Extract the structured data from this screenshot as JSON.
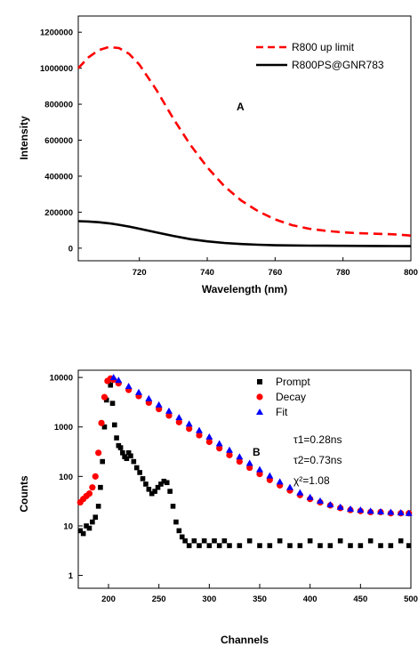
{
  "chart_data": [
    {
      "type": "line",
      "panel_label": "A",
      "xlabel": "Wavelength (nm)",
      "ylabel": "Intensity",
      "xlim": [
        702,
        800
      ],
      "ylim": [
        -70000,
        1290000
      ],
      "xticks": [
        720,
        740,
        760,
        780,
        800
      ],
      "yticks": [
        0,
        200000,
        400000,
        600000,
        800000,
        1000000,
        1200000
      ],
      "grid": false,
      "legend_position": "top-right",
      "x": [
        702,
        705,
        708,
        711,
        714,
        717,
        720,
        725,
        730,
        735,
        740,
        745,
        750,
        755,
        760,
        765,
        770,
        775,
        780,
        785,
        790,
        795,
        800
      ],
      "series": [
        {
          "name": "R800 up limit",
          "style": "dashed",
          "color": "#ff0000",
          "values": [
            1000000,
            1060000,
            1100000,
            1118000,
            1112000,
            1080000,
            1020000,
            880000,
            720000,
            575000,
            450000,
            345000,
            265000,
            205000,
            160000,
            128000,
            108000,
            96000,
            88000,
            83000,
            80000,
            77000,
            70000
          ]
        },
        {
          "name": "R800PS@GNR783",
          "style": "solid",
          "color": "#000000",
          "values": [
            150000,
            148000,
            144000,
            138000,
            130000,
            120000,
            108000,
            88000,
            68000,
            50000,
            38000,
            29000,
            23000,
            19000,
            16000,
            15000,
            14000,
            13500,
            13000,
            12500,
            12000,
            11500,
            11000
          ]
        }
      ]
    },
    {
      "type": "scatter",
      "panel_label": "B",
      "xlabel": "Channels",
      "ylabel": "Counts",
      "xlim": [
        170,
        500
      ],
      "ylim": [
        0.55,
        14000
      ],
      "yscale": "log",
      "xticks": [
        200,
        250,
        300,
        350,
        400,
        450,
        500
      ],
      "yticks": [
        1,
        10,
        100,
        1000,
        10000
      ],
      "grid": false,
      "legend_position": "top-right",
      "annotations": [
        "τ1=0.28ns",
        "τ2=0.73ns",
        "χ²=1.08"
      ],
      "series": [
        {
          "name": "Prompt",
          "marker": "square",
          "color": "#000000",
          "x": [
            172,
            175,
            178,
            181,
            184,
            187,
            190,
            192,
            194,
            196,
            198,
            200,
            202,
            204,
            206,
            208,
            210,
            212,
            214,
            216,
            218,
            220,
            222,
            225,
            228,
            231,
            234,
            237,
            240,
            243,
            246,
            249,
            252,
            255,
            258,
            261,
            264,
            267,
            270,
            273,
            276,
            280,
            285,
            290,
            295,
            300,
            305,
            310,
            315,
            320,
            330,
            340,
            350,
            360,
            370,
            380,
            390,
            400,
            410,
            420,
            430,
            440,
            450,
            460,
            470,
            480,
            490,
            498
          ],
          "y": [
            8,
            7,
            10,
            9,
            12,
            15,
            25,
            60,
            200,
            1000,
            3500,
            8500,
            7000,
            3000,
            1100,
            600,
            420,
            380,
            300,
            250,
            230,
            300,
            260,
            200,
            150,
            120,
            90,
            70,
            55,
            45,
            50,
            60,
            70,
            80,
            75,
            50,
            25,
            12,
            8,
            6,
            5,
            4,
            5,
            4,
            5,
            4,
            5,
            4,
            5,
            4,
            4,
            5,
            4,
            4,
            5,
            4,
            4,
            5,
            4,
            4,
            5,
            4,
            4,
            5,
            4,
            4,
            5,
            4
          ]
        },
        {
          "name": "Decay",
          "marker": "circle",
          "color": "#ff0000",
          "x": [
            172,
            175,
            178,
            181,
            184,
            187,
            190,
            193,
            196,
            199,
            202,
            205,
            210,
            220,
            230,
            240,
            250,
            260,
            270,
            280,
            290,
            300,
            310,
            320,
            330,
            340,
            350,
            360,
            370,
            380,
            390,
            400,
            410,
            420,
            430,
            440,
            450,
            460,
            470,
            480,
            490,
            498
          ],
          "y": [
            30,
            35,
            40,
            45,
            60,
            100,
            300,
            1200,
            4000,
            8500,
            9500,
            9000,
            7600,
            5600,
            4200,
            3100,
            2300,
            1700,
            1250,
            920,
            680,
            500,
            370,
            270,
            200,
            150,
            112,
            85,
            66,
            52,
            42,
            35,
            30,
            26,
            23,
            21,
            20,
            19,
            19,
            18,
            18,
            18
          ]
        },
        {
          "name": "Fit",
          "marker": "triangle",
          "color": "#0000ff",
          "x": [
            205,
            210,
            220,
            230,
            240,
            250,
            260,
            270,
            280,
            290,
            300,
            310,
            320,
            330,
            340,
            350,
            360,
            370,
            380,
            390,
            400,
            410,
            420,
            430,
            440,
            450,
            460,
            470,
            480,
            490,
            498
          ],
          "y": [
            10000,
            8800,
            6600,
            5000,
            3750,
            2800,
            2100,
            1550,
            1150,
            850,
            630,
            460,
            340,
            250,
            185,
            138,
            103,
            78,
            60,
            47,
            38,
            32,
            27,
            24,
            22,
            21,
            20,
            19.5,
            19,
            18.5,
            18
          ]
        }
      ]
    }
  ]
}
